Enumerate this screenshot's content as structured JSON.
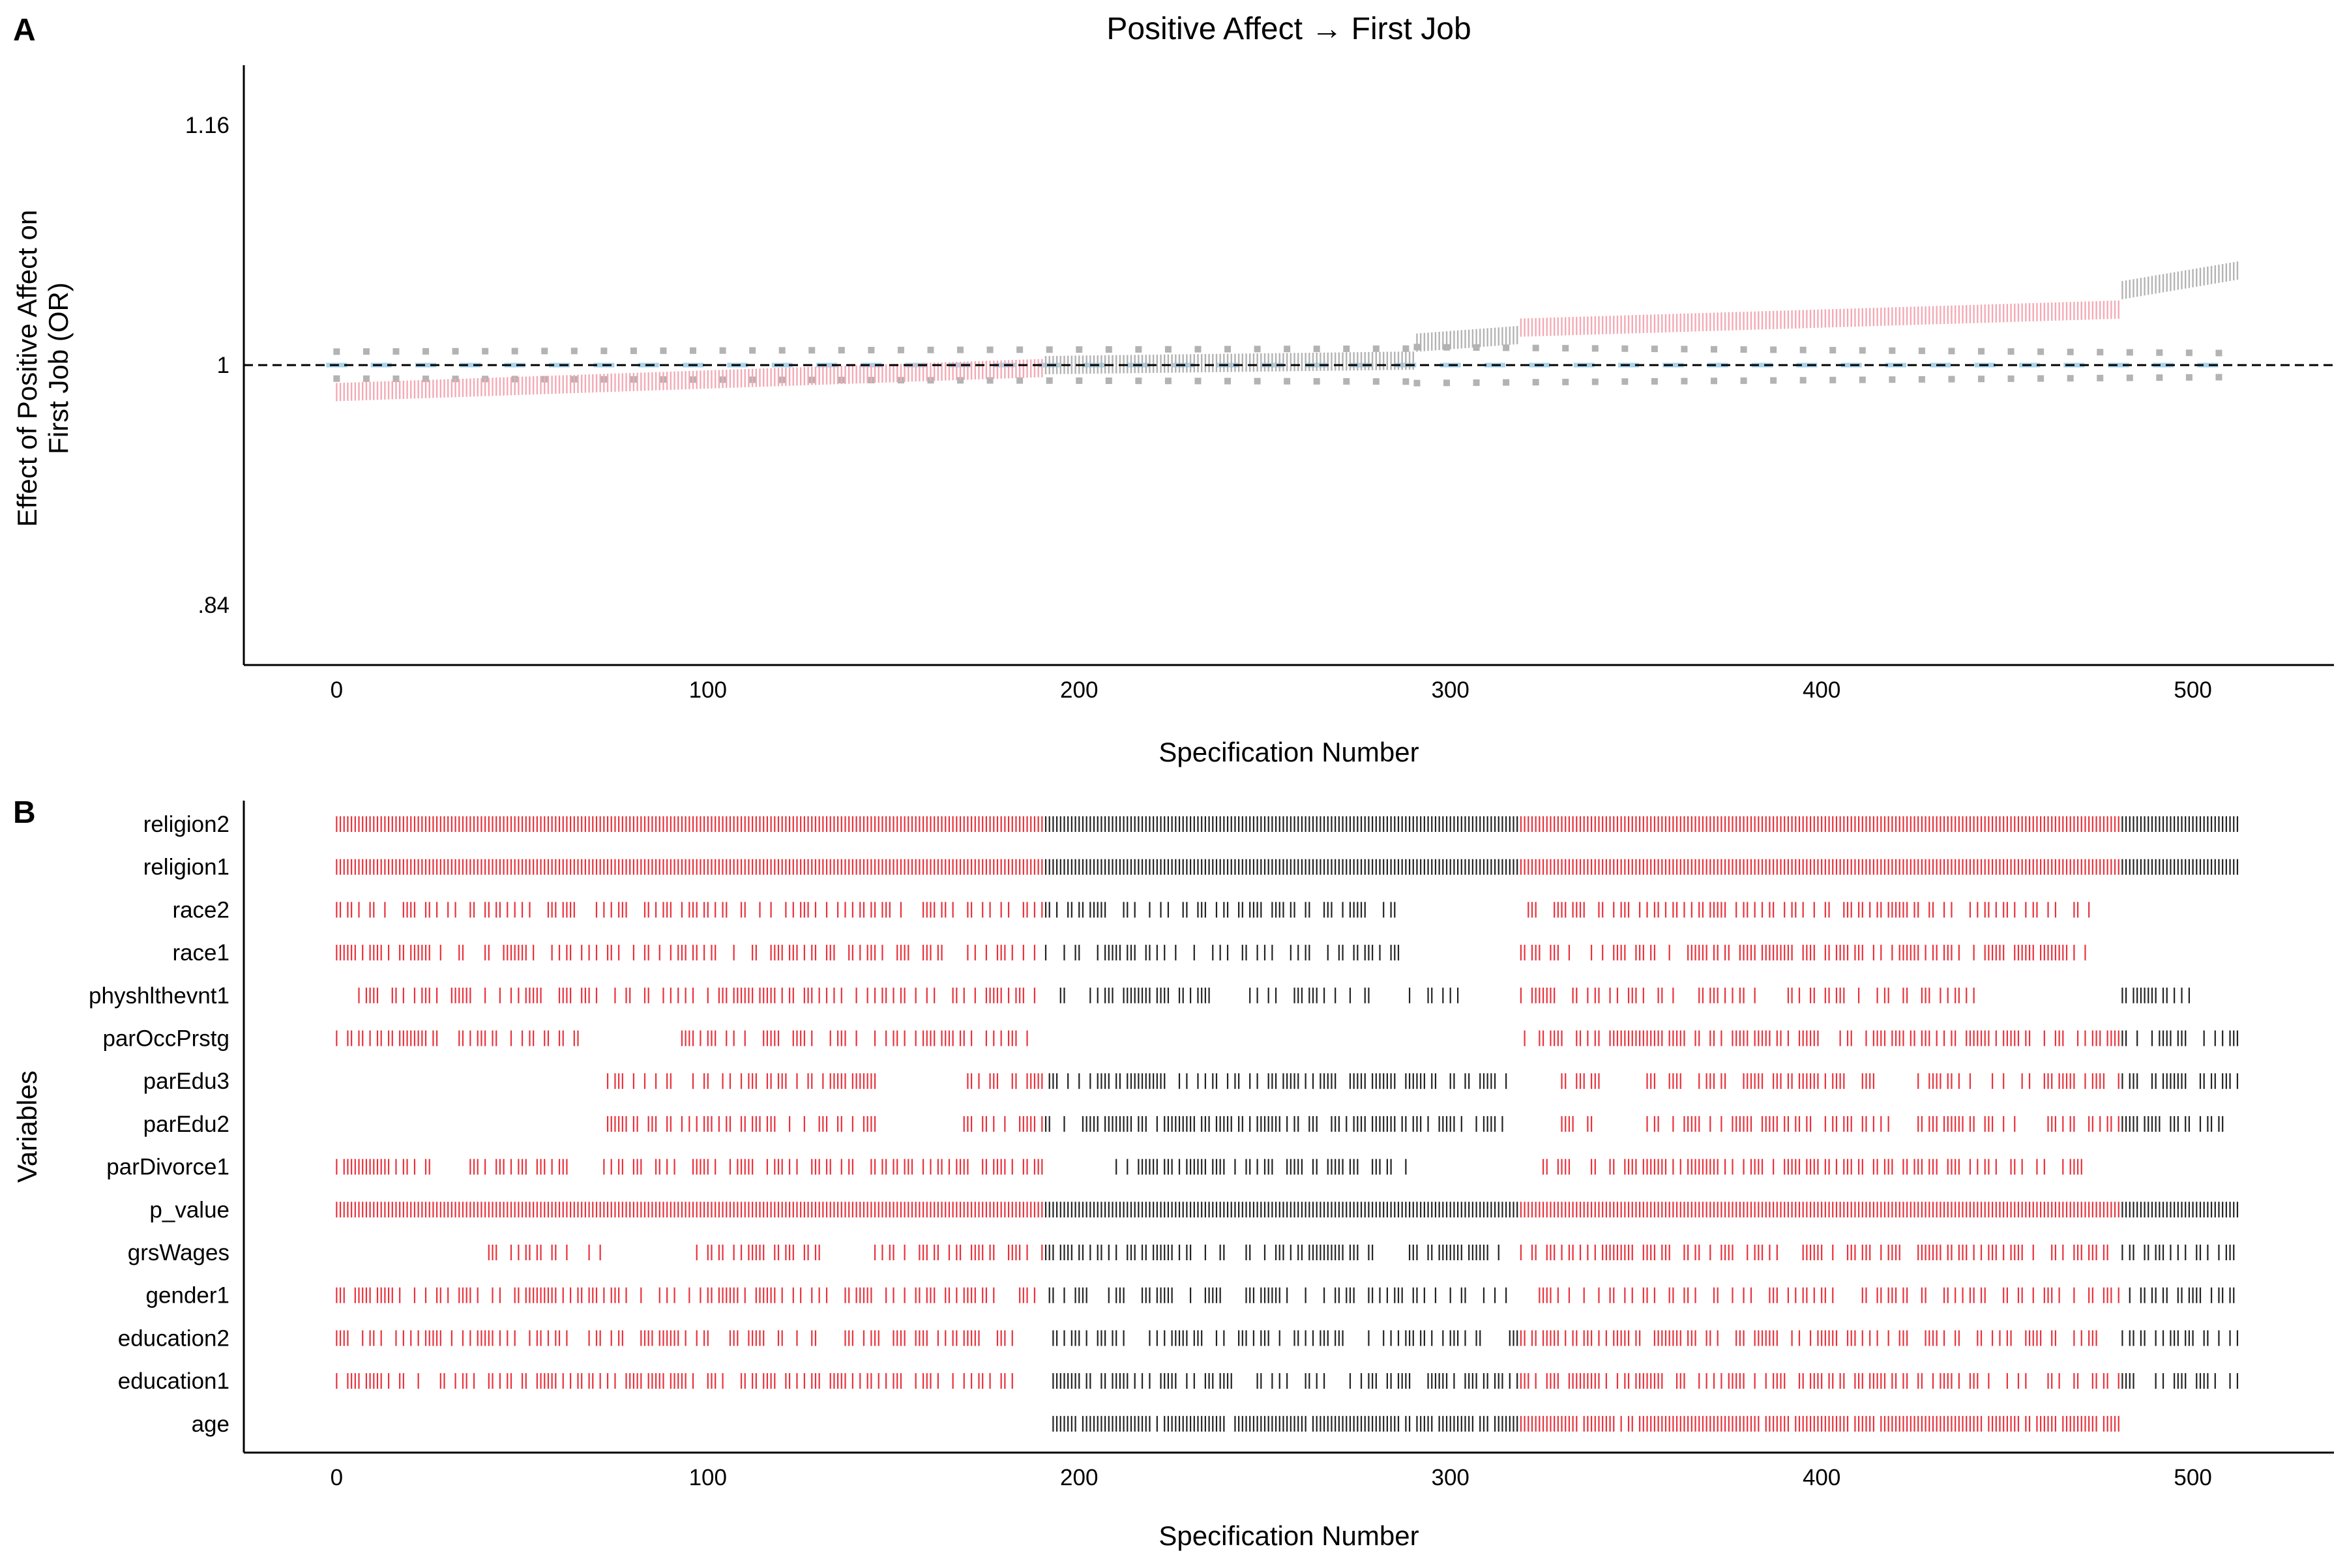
{
  "chart_data": [
    {
      "panel": "A",
      "type": "scatter",
      "title": "Positive Affect → First Job",
      "xlabel": "Specification Number",
      "ylabel": "Effect of Positive Affect on First Job (OR)",
      "xlim": [
        -25,
        538
      ],
      "ylim": [
        0.8,
        1.2
      ],
      "x_ticks": [
        0,
        100,
        200,
        300,
        400,
        500
      ],
      "y_ticks": [
        {
          "value": 0.84,
          "label": ".84"
        },
        {
          "value": 1.0,
          "label": "1"
        },
        {
          "value": 1.16,
          "label": "1.16"
        }
      ],
      "reference_line": {
        "y": 1.0,
        "style": "dashed",
        "color": "#000000"
      },
      "n_specifications": 512,
      "series": [
        {
          "role": "estimate",
          "color_significant": "#f4a9b4",
          "color_nonsignificant": "#b3b3b3",
          "segments": [
            {
              "x": [
                0,
                190
              ],
              "y": [
                0.982,
                0.998
              ],
              "significant": true
            },
            {
              "x": [
                191,
                290
              ],
              "y": [
                1.0,
                1.003
              ],
              "significant": false
            },
            {
              "x": [
                291,
                318
              ],
              "y": [
                1.015,
                1.02
              ],
              "significant": false
            },
            {
              "x": [
                319,
                480
              ],
              "y": [
                1.025,
                1.037
              ],
              "significant": true
            },
            {
              "x": [
                481,
                512
              ],
              "y": [
                1.05,
                1.063
              ],
              "significant": false
            }
          ]
        },
        {
          "role": "null_upper",
          "color": "#b3b3b3",
          "segments": [
            {
              "x": [
                0,
                290
              ],
              "y": [
                1.009,
                1.011
              ]
            },
            {
              "x": [
                291,
                510
              ],
              "y": [
                1.012,
                1.008
              ]
            }
          ]
        },
        {
          "role": "null_median",
          "color": "#a9d3e8",
          "segments": [
            {
              "x": [
                0,
                512
              ],
              "y": [
                1.0,
                1.0
              ]
            }
          ]
        },
        {
          "role": "null_lower",
          "color": "#b3b3b3",
          "segments": [
            {
              "x": [
                0,
                290
              ],
              "y": [
                0.991,
                0.989
              ]
            },
            {
              "x": [
                291,
                510
              ],
              "y": [
                0.988,
                0.992
              ]
            }
          ]
        }
      ]
    },
    {
      "panel": "B",
      "type": "specification_grid",
      "xlabel": "Specification Number",
      "ylabel": "Variables",
      "xlim": [
        -25,
        538
      ],
      "x_ticks": [
        0,
        100,
        200,
        300,
        400,
        500
      ],
      "color_significant": "#e8323c",
      "color_nonsignificant": "#222222",
      "significance_ranges": [
        [
          0,
          190
        ],
        [
          319,
          480
        ]
      ],
      "variables": [
        "religion2",
        "religion1",
        "race2",
        "race1",
        "physhlthevnt1",
        "parOccPrstg",
        "parEdu3",
        "parEdu2",
        "parDivorce1",
        "p_value",
        "grsWages",
        "gender1",
        "education2",
        "education1",
        "age"
      ],
      "inclusion": {
        "religion2": {
          "ranges": [
            [
              0,
              512
            ]
          ],
          "density": 1.0
        },
        "religion1": {
          "ranges": [
            [
              0,
              512
            ]
          ],
          "density": 1.0
        },
        "race2": {
          "ranges": [
            [
              0,
              190
            ],
            [
              191,
              215
            ],
            [
              218,
              240
            ],
            [
              243,
              262
            ],
            [
              266,
              287
            ],
            [
              319,
              472
            ]
          ],
          "density": 0.55
        },
        "race1": {
          "ranges": [
            [
              0,
              190
            ],
            [
              191,
              215
            ],
            [
              218,
              240
            ],
            [
              243,
              262
            ],
            [
              266,
              287
            ],
            [
              319,
              472
            ]
          ],
          "density": 0.55
        },
        "physhlthevnt1": {
          "ranges": [
            [
              6,
              190
            ],
            [
              191,
              240
            ],
            [
              241,
              278
            ],
            [
              287,
              303
            ],
            [
              319,
              445
            ],
            [
              481,
              500
            ]
          ],
          "density": 0.5
        },
        "parOccPrstg": {
          "ranges": [
            [
              0,
              65
            ],
            [
              93,
              128
            ],
            [
              131,
              190
            ],
            [
              319,
              512
            ]
          ],
          "density": 0.6
        },
        "parEdu3": {
          "ranges": [
            [
              72,
              145
            ],
            [
              168,
              190
            ],
            [
              191,
              315
            ],
            [
              330,
              340
            ],
            [
              353,
              418
            ],
            [
              425,
              512
            ]
          ],
          "density": 0.6
        },
        "parEdu2": {
          "ranges": [
            [
              72,
              145
            ],
            [
              168,
              190
            ],
            [
              191,
              315
            ],
            [
              330,
              340
            ],
            [
              353,
              418
            ],
            [
              425,
              512
            ]
          ],
          "density": 0.6
        },
        "parDivorce1": {
          "ranges": [
            [
              0,
              26
            ],
            [
              36,
              64
            ],
            [
              72,
              190
            ],
            [
              210,
              288
            ],
            [
              323,
              470
            ]
          ],
          "density": 0.6
        },
        "p_value": {
          "ranges": [
            [
              0,
              512
            ]
          ],
          "density": 1.0
        },
        "grsWages": {
          "ranges": [
            [
              40,
              72
            ],
            [
              96,
              130
            ],
            [
              143,
              190
            ],
            [
              191,
              280
            ],
            [
              289,
              313
            ],
            [
              319,
              512
            ]
          ],
          "density": 0.55
        },
        "gender1": {
          "ranges": [
            [
              0,
              512
            ]
          ],
          "density": 0.5
        },
        "education2": {
          "ranges": [
            [
              0,
              182
            ],
            [
              193,
              512
            ]
          ],
          "density": 0.55
        },
        "education1": {
          "ranges": [
            [
              0,
              182
            ],
            [
              193,
              512
            ]
          ],
          "density": 0.55
        },
        "age": {
          "ranges": [
            [
              193,
              480
            ]
          ],
          "density": 0.9
        }
      }
    }
  ]
}
